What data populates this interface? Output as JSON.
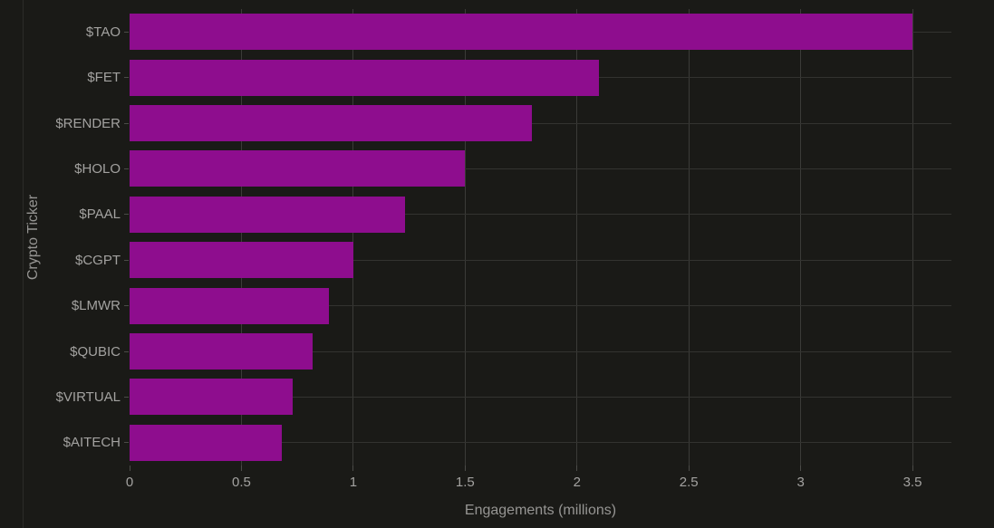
{
  "chart_data": {
    "type": "bar",
    "orientation": "horizontal",
    "title": "",
    "xlabel": "Engagements (millions)",
    "ylabel": "Crypto Ticker",
    "categories": [
      "$TAO",
      "$FET",
      "$RENDER",
      "$HOLO",
      "$PAAL",
      "$CGPT",
      "$LMWR",
      "$QUBIC",
      "$VIRTUAL",
      "$AITECH"
    ],
    "values": [
      3.5,
      2.1,
      1.8,
      1.5,
      1.23,
      1.0,
      0.89,
      0.82,
      0.73,
      0.68
    ],
    "xticks": [
      "0",
      "0.5",
      "1",
      "1.5",
      "2",
      "2.5",
      "3",
      "3.5"
    ],
    "xtick_values": [
      0,
      0.5,
      1,
      1.5,
      2,
      2.5,
      3,
      3.5
    ],
    "xlim": [
      0,
      3.674
    ],
    "grid": "on",
    "legend": "none",
    "colors": {
      "background": "#1a1a17",
      "bar": "#8e0d8e",
      "grid_vertical": "#3b3b38",
      "grid_horizontal": "#333330",
      "tick_text": "#a3a2a0",
      "axis_title_text": "#969593",
      "tick_mark": "#4b4b48",
      "left_divider": "#2c2c29"
    }
  }
}
